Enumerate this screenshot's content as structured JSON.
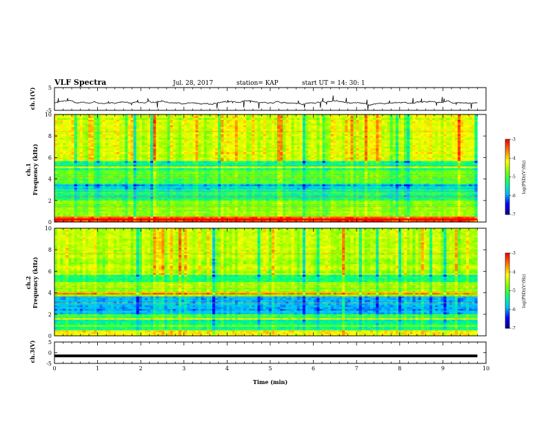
{
  "header": {
    "title": "VLF Spectra",
    "date": "Jul. 28, 2017",
    "station": "station= KAP",
    "start_ut": "start UT =  14: 30: 1"
  },
  "axes": {
    "ch1_wave_label": "ch.1(V)",
    "ch1_spec_label": "ch.1\nFrequency (kHz)",
    "ch2_spec_label": "ch.2\nFrequency (kHz)",
    "ch3_wave_label": "ch.3(V)",
    "xlabel": "Time (min)",
    "colorbar_label": "log(PSD)(V²/Hz)"
  },
  "colors": {
    "wave_line": "#000000",
    "cmap": [
      "#000080",
      "#0000ff",
      "#00bfff",
      "#00ff7f",
      "#7fff00",
      "#ffff00",
      "#ff7f00",
      "#ff0000",
      "#ffffff"
    ]
  },
  "chart_data": [
    {
      "type": "line",
      "name": "ch1-waveform",
      "ylabel": "ch.1(V)",
      "ylim": [
        -5,
        5
      ],
      "yticks": [
        "5",
        "-5"
      ],
      "xlim": [
        0,
        10
      ],
      "x_extent": [
        0,
        9.8
      ],
      "approx_mean": -1.5
    },
    {
      "type": "heatmap",
      "name": "ch1-spectrogram",
      "ylabel": "Frequency (kHz)",
      "ylim": [
        0,
        10
      ],
      "yticks": [
        "0",
        "2",
        "4",
        "6",
        "8",
        "10"
      ],
      "xlim": [
        0,
        10
      ],
      "x_extent": [
        0,
        9.8
      ],
      "bands": [
        {
          "f": [
            0,
            0.5
          ],
          "level": -3.3
        },
        {
          "f": [
            0.5,
            1.0
          ],
          "level": -4.6
        },
        {
          "f": [
            1.0,
            2.0
          ],
          "level": -4.8
        },
        {
          "f": [
            2.0,
            3.0
          ],
          "level": -5.3
        },
        {
          "f": [
            3.0,
            3.6
          ],
          "level": -5.8
        },
        {
          "f": [
            3.6,
            4.8
          ],
          "level": -4.8
        },
        {
          "f": [
            4.8,
            5.6
          ],
          "level": -5.3
        },
        {
          "f": [
            5.6,
            10.0
          ],
          "level": -4.3
        }
      ],
      "colorbar": {
        "ticks": [
          "-3",
          "-4",
          "-5",
          "-6",
          "-7"
        ],
        "range": [
          -7,
          -3
        ]
      }
    },
    {
      "type": "heatmap",
      "name": "ch2-spectrogram",
      "ylabel": "Frequency (kHz)",
      "ylim": [
        0,
        10
      ],
      "yticks": [
        "0",
        "2",
        "4",
        "6",
        "8",
        "10"
      ],
      "xlim": [
        0,
        10
      ],
      "x_extent": [
        0,
        9.8
      ],
      "bands": [
        {
          "f": [
            0,
            0.5
          ],
          "level": -4.0
        },
        {
          "f": [
            0.5,
            1.5
          ],
          "level": -5.4
        },
        {
          "f": [
            1.5,
            2.0
          ],
          "level": -5.0
        },
        {
          "f": [
            2.0,
            3.6
          ],
          "level": -5.9
        },
        {
          "f": [
            3.6,
            5.0
          ],
          "level": -4.6
        },
        {
          "f": [
            5.0,
            5.6
          ],
          "level": -5.2
        },
        {
          "f": [
            5.6,
            10.0
          ],
          "level": -4.5
        }
      ],
      "colorbar": {
        "ticks": [
          "-3",
          "-4",
          "-5",
          "-6",
          "-7"
        ],
        "range": [
          -7,
          -3
        ]
      }
    },
    {
      "type": "line",
      "name": "ch3-waveform",
      "ylabel": "ch.3(V)",
      "ylim": [
        -5,
        5
      ],
      "yticks": [
        "5",
        "0",
        "-5"
      ],
      "xlim": [
        0,
        10
      ],
      "x_extent": [
        0,
        9.8
      ],
      "constant_value": -1.5
    }
  ],
  "x_axis": {
    "xlim": [
      0,
      10
    ],
    "ticks": [
      "0",
      "1",
      "2",
      "3",
      "4",
      "5",
      "6",
      "7",
      "8",
      "9",
      "10"
    ]
  }
}
